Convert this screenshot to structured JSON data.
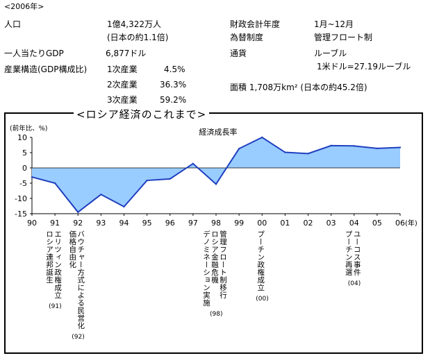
{
  "header": {
    "year_label": "<2006年>",
    "population_label": "人口",
    "population_value": "1億4,322万人",
    "population_note": "(日本の約1.1倍)",
    "gdp_per_capita_label": "一人当たりGDP",
    "gdp_per_capita_value": "6,877ドル",
    "industry_label": "産業構造(GDP構成比)",
    "industry_rows": [
      {
        "name": "1次産業",
        "value": "4.5%"
      },
      {
        "name": "2次産業",
        "value": "36.3%"
      },
      {
        "name": "3次産業",
        "value": "59.2%"
      }
    ],
    "fiscal_year_label": "財政会計年度",
    "fiscal_year_value": "1月~12月",
    "fx_label": "為替制度",
    "fx_value": "管理フロート制",
    "currency_label": "通貨",
    "currency_value": "ルーブル",
    "currency_rate": "1米ドル=27.19ルーブル",
    "area_text": "面積 1,708万km² (日本の約45.2倍)"
  },
  "section_title": "<ロシア経済のこれまで>",
  "chart_data": {
    "type": "area",
    "title": "経済成長率",
    "ylabel": "(前年比、%)",
    "xunit": "(年)",
    "ylim": [
      -15,
      10
    ],
    "yticks": [
      10,
      5,
      0,
      -5,
      -10,
      -15
    ],
    "x_tick_labels": [
      "90",
      "91",
      "92",
      "93",
      "94",
      "95",
      "96",
      "97",
      "98",
      "99",
      "00",
      "01",
      "02",
      "03",
      "04",
      "05",
      "06"
    ],
    "x": [
      1990,
      1991,
      1992,
      1993,
      1994,
      1995,
      1996,
      1997,
      1998,
      1999,
      2000,
      2001,
      2002,
      2003,
      2004,
      2005,
      2006
    ],
    "values": [
      -3.0,
      -5.0,
      -14.5,
      -8.7,
      -12.7,
      -4.1,
      -3.6,
      1.4,
      -5.3,
      6.3,
      10.0,
      5.1,
      4.7,
      7.3,
      7.2,
      6.4,
      6.7
    ],
    "fill_color": "#99ccff",
    "line_color": "#1f3fbf",
    "events": [
      {
        "x": 1991,
        "lines": [
          "エリツィン政権成立",
          "ロシア連邦誕生"
        ],
        "year": "(91)"
      },
      {
        "x": 1992,
        "lines": [
          "バウチャー方式による民営化",
          "価格自由化"
        ],
        "year": "(92)"
      },
      {
        "x": 1998,
        "lines": [
          "管理フロート制移行",
          "ロシア金融危機",
          "デノミネーション実施"
        ],
        "year": "(98)"
      },
      {
        "x": 2000,
        "lines": [
          "プーチン政権成立"
        ],
        "year": "(00)"
      },
      {
        "x": 2004,
        "lines": [
          "ユーコス事件",
          "プーチン再選"
        ],
        "year": "(04)"
      }
    ]
  }
}
